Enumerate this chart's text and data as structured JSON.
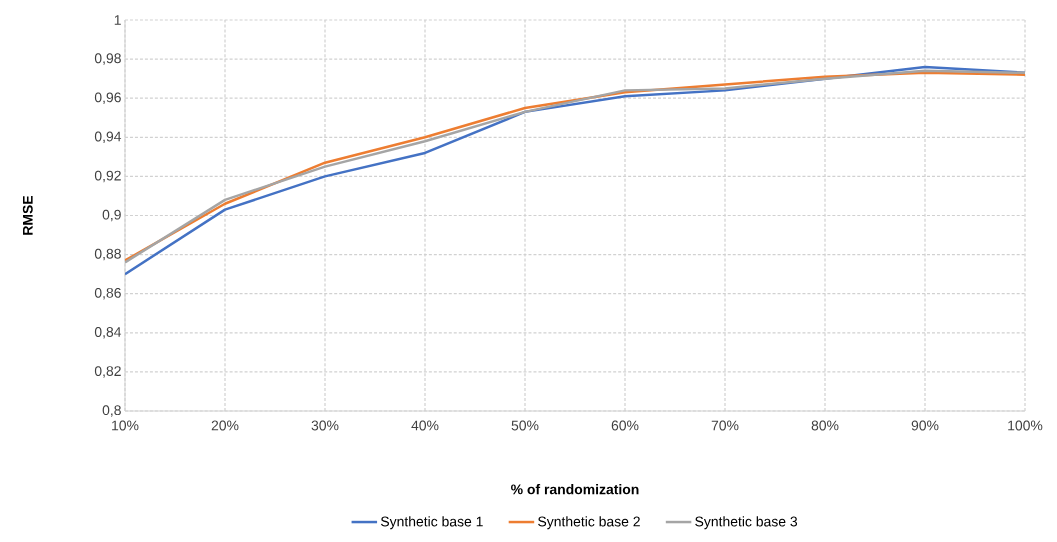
{
  "chart_data": {
    "type": "line",
    "xlabel": "% of randomization",
    "ylabel": "RMSE",
    "categories": [
      "10%",
      "20%",
      "30%",
      "40%",
      "50%",
      "60%",
      "70%",
      "80%",
      "90%",
      "100%"
    ],
    "series": [
      {
        "name": "Synthetic base 1",
        "color": "#4472c4",
        "values": [
          0.87,
          0.903,
          0.92,
          0.932,
          0.953,
          0.961,
          0.964,
          0.97,
          0.976,
          0.973
        ]
      },
      {
        "name": "Synthetic base 2",
        "color": "#ed7d31",
        "values": [
          0.877,
          0.906,
          0.927,
          0.94,
          0.955,
          0.963,
          0.967,
          0.971,
          0.973,
          0.972
        ]
      },
      {
        "name": "Synthetic base 3",
        "color": "#a5a5a5",
        "values": [
          0.876,
          0.908,
          0.925,
          0.938,
          0.953,
          0.964,
          0.965,
          0.97,
          0.974,
          0.973
        ]
      }
    ],
    "ylim": [
      0.8,
      1
    ],
    "yticks": [
      {
        "value": 0.8,
        "label": "0,8"
      },
      {
        "value": 0.82,
        "label": "0,82"
      },
      {
        "value": 0.84,
        "label": "0,84"
      },
      {
        "value": 0.86,
        "label": "0,86"
      },
      {
        "value": 0.88,
        "label": "0,88"
      },
      {
        "value": 0.9,
        "label": "0,9"
      },
      {
        "value": 0.92,
        "label": "0,92"
      },
      {
        "value": 0.94,
        "label": "0,94"
      },
      {
        "value": 0.96,
        "label": "0,96"
      },
      {
        "value": 0.98,
        "label": "0,98"
      },
      {
        "value": 1,
        "label": "1"
      }
    ],
    "grid": true,
    "legend": "bottom",
    "marker": "none",
    "line_style": "solid"
  }
}
